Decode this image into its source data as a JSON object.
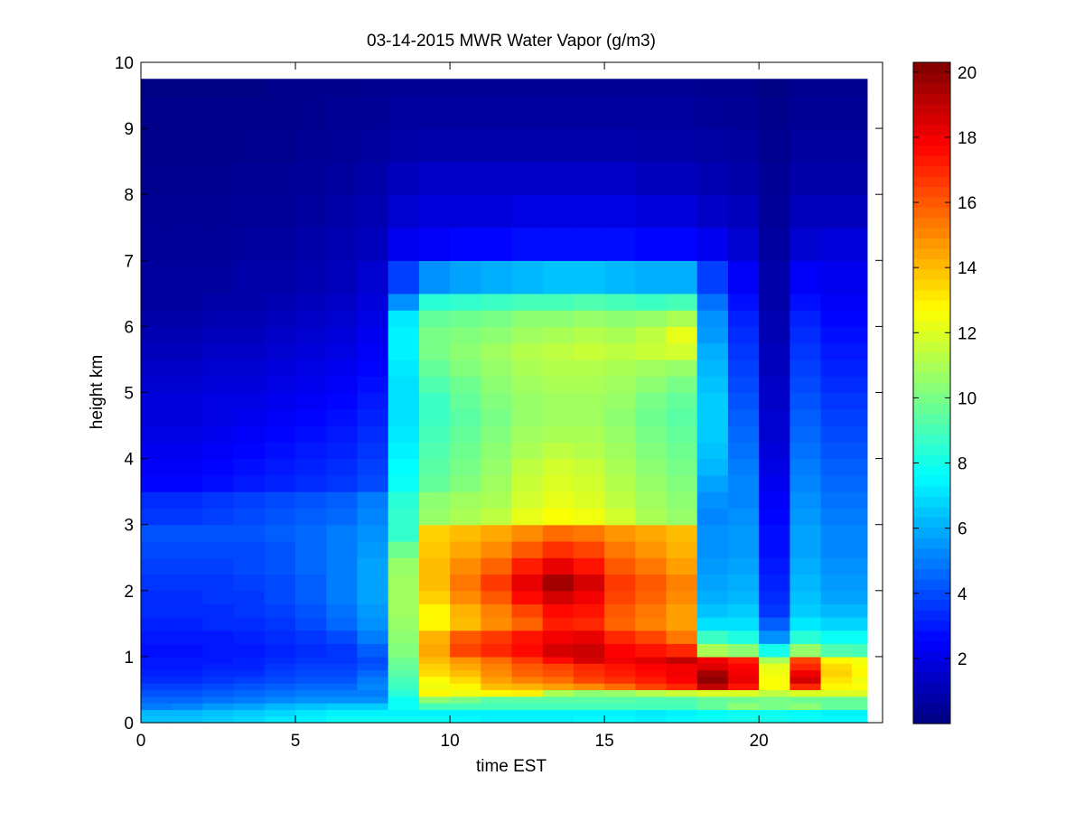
{
  "chart_data": {
    "type": "heatmap",
    "title": "03-14-2015 MWR Water Vapor (g/m3)",
    "xlabel": "time EST",
    "ylabel": "height km",
    "xlim": [
      0,
      24
    ],
    "ylim": [
      0,
      10
    ],
    "x_ticks": [
      0,
      5,
      10,
      15,
      20
    ],
    "y_ticks": [
      0,
      1,
      2,
      3,
      4,
      5,
      6,
      7,
      8,
      9,
      10
    ],
    "x": [
      0.0,
      1.0,
      2.0,
      3.0,
      4.0,
      5.0,
      6.0,
      7.0,
      8.0,
      9.0,
      10.0,
      11.0,
      12.0,
      13.0,
      14.0,
      15.0,
      16.0,
      17.0,
      18.0,
      19.0,
      20.0,
      21.0,
      22.0,
      23.0
    ],
    "y": [
      0.0,
      0.1,
      0.2,
      0.3,
      0.4,
      0.5,
      0.6,
      0.7,
      0.8,
      0.9,
      1.0,
      1.2,
      1.4,
      1.6,
      1.8,
      2.0,
      2.25,
      2.5,
      2.75,
      3.0,
      3.25,
      3.5,
      3.75,
      4.0,
      4.25,
      4.5,
      4.75,
      5.0,
      5.25,
      5.5,
      5.75,
      6.0,
      6.25,
      6.5,
      7.0,
      7.5,
      8.0,
      8.5,
      9.0,
      9.5
    ],
    "z": [
      [
        6.4,
        6.4,
        6.6,
        6.8,
        7.2,
        7.4,
        7.8,
        7.8,
        7.8,
        7.8,
        7.6,
        7.4,
        7.4,
        7.4,
        7.6,
        7.6,
        7.4,
        7.6,
        7.8,
        8.0,
        8.0,
        7.8,
        7.6,
        7.6
      ],
      [
        6.2,
        6.2,
        6.4,
        6.6,
        6.8,
        7.2,
        7.4,
        7.4,
        7.4,
        7.4,
        7.4,
        7.4,
        7.4,
        7.4,
        7.4,
        7.4,
        7.2,
        7.4,
        7.6,
        7.8,
        7.8,
        7.6,
        7.4,
        7.4
      ],
      [
        5.0,
        5.2,
        5.6,
        5.8,
        6.2,
        6.4,
        6.6,
        6.6,
        7.8,
        9.0,
        9.0,
        9.0,
        9.0,
        9.0,
        9.0,
        9.0,
        9.0,
        9.0,
        9.6,
        10.4,
        10.0,
        10.4,
        9.6,
        9.6
      ],
      [
        4.6,
        4.6,
        4.8,
        5.0,
        5.2,
        5.4,
        5.4,
        5.4,
        7.8,
        10.4,
        10.0,
        9.4,
        9.4,
        9.4,
        9.4,
        9.4,
        9.2,
        9.2,
        9.6,
        9.8,
        10.0,
        9.8,
        9.6,
        9.6
      ],
      [
        4.2,
        4.2,
        4.4,
        4.6,
        4.8,
        5.0,
        5.0,
        5.0,
        8.4,
        12.8,
        12.4,
        12.8,
        13.0,
        11.0,
        10.4,
        10.6,
        11.2,
        11.6,
        12.0,
        12.0,
        11.4,
        12.0,
        12.0,
        12.0
      ],
      [
        3.8,
        3.8,
        4.0,
        4.2,
        4.4,
        4.6,
        4.6,
        5.2,
        8.8,
        12.4,
        12.8,
        14.0,
        14.2,
        14.6,
        15.0,
        15.6,
        16.4,
        17.0,
        19.0,
        17.4,
        12.6,
        17.0,
        12.8,
        12.6
      ],
      [
        3.4,
        3.4,
        3.6,
        3.8,
        4.0,
        4.2,
        4.2,
        5.0,
        9.0,
        12.6,
        13.4,
        14.6,
        15.2,
        15.6,
        16.4,
        16.8,
        17.2,
        17.8,
        20.0,
        18.2,
        12.6,
        18.6,
        13.2,
        12.4
      ],
      [
        3.2,
        3.2,
        3.4,
        3.4,
        3.8,
        4.0,
        4.0,
        4.6,
        9.4,
        13.4,
        14.0,
        15.0,
        15.8,
        16.2,
        16.8,
        17.2,
        17.6,
        18.0,
        19.6,
        18.0,
        12.4,
        18.0,
        13.6,
        12.8
      ],
      [
        3.0,
        3.0,
        3.2,
        3.2,
        3.6,
        3.8,
        3.8,
        4.2,
        9.6,
        13.6,
        14.4,
        15.2,
        16.0,
        16.4,
        17.0,
        17.4,
        17.8,
        18.0,
        18.4,
        17.8,
        12.2,
        17.0,
        13.4,
        12.6
      ],
      [
        3.0,
        3.0,
        3.0,
        3.2,
        3.4,
        3.6,
        3.6,
        4.0,
        9.8,
        14.0,
        14.8,
        15.6,
        16.6,
        17.6,
        18.6,
        18.0,
        18.4,
        19.0,
        18.0,
        17.2,
        11.0,
        16.4,
        12.8,
        12.4
      ],
      [
        2.8,
        2.8,
        3.0,
        3.0,
        3.2,
        3.4,
        3.6,
        4.4,
        10.2,
        14.4,
        16.4,
        17.0,
        17.6,
        18.6,
        18.8,
        17.8,
        17.4,
        17.0,
        11.0,
        10.4,
        8.0,
        10.6,
        9.2,
        9.0
      ],
      [
        3.0,
        3.0,
        3.0,
        3.2,
        3.4,
        3.6,
        4.0,
        5.0,
        10.4,
        14.2,
        16.0,
        16.6,
        17.4,
        18.0,
        18.2,
        17.0,
        16.4,
        15.4,
        8.8,
        8.2,
        5.4,
        8.4,
        7.8,
        7.8
      ],
      [
        3.2,
        3.2,
        3.4,
        3.4,
        3.6,
        4.0,
        4.6,
        5.4,
        10.6,
        12.8,
        14.0,
        15.0,
        15.8,
        17.2,
        17.0,
        15.8,
        15.2,
        14.6,
        7.0,
        7.0,
        4.4,
        7.2,
        6.8,
        6.8
      ],
      [
        3.4,
        3.4,
        3.4,
        3.6,
        3.8,
        4.2,
        4.8,
        5.6,
        10.8,
        12.8,
        14.2,
        15.2,
        16.4,
        17.6,
        17.4,
        16.0,
        15.4,
        14.6,
        6.4,
        6.6,
        3.6,
        6.6,
        6.2,
        6.2
      ],
      [
        3.4,
        3.4,
        3.6,
        3.6,
        4.0,
        4.4,
        5.0,
        5.8,
        10.8,
        13.6,
        15.0,
        16.0,
        17.6,
        18.6,
        18.0,
        16.4,
        15.8,
        15.0,
        6.0,
        6.2,
        3.4,
        6.4,
        5.8,
        5.8
      ],
      [
        3.6,
        3.6,
        3.6,
        3.8,
        4.0,
        4.4,
        5.0,
        5.8,
        10.8,
        14.0,
        15.4,
        16.6,
        18.2,
        19.6,
        18.6,
        16.6,
        16.0,
        15.2,
        5.8,
        6.0,
        3.2,
        6.2,
        5.6,
        5.6
      ],
      [
        3.8,
        3.8,
        3.8,
        4.0,
        4.2,
        4.6,
        5.0,
        5.8,
        10.6,
        14.0,
        15.0,
        15.8,
        17.2,
        18.2,
        17.4,
        16.0,
        15.4,
        14.6,
        5.6,
        5.8,
        3.0,
        6.0,
        5.4,
        5.4
      ],
      [
        4.0,
        4.0,
        4.0,
        4.0,
        4.2,
        4.6,
        5.0,
        5.6,
        9.8,
        13.8,
        14.4,
        15.0,
        16.0,
        16.8,
        16.4,
        15.4,
        14.8,
        14.2,
        5.4,
        5.6,
        2.8,
        5.8,
        5.2,
        5.2
      ],
      [
        4.2,
        4.2,
        4.2,
        4.2,
        4.4,
        4.6,
        5.0,
        5.4,
        8.6,
        13.6,
        14.0,
        14.4,
        15.0,
        15.6,
        15.4,
        14.8,
        14.4,
        14.0,
        5.4,
        5.6,
        2.8,
        5.8,
        5.2,
        5.2
      ],
      [
        3.6,
        3.6,
        3.8,
        4.0,
        4.2,
        4.4,
        4.6,
        5.2,
        8.6,
        10.6,
        11.0,
        11.4,
        12.2,
        12.6,
        12.4,
        11.8,
        11.0,
        10.6,
        5.2,
        5.4,
        2.6,
        5.6,
        5.0,
        5.0
      ],
      [
        3.4,
        3.4,
        3.6,
        3.8,
        4.0,
        4.2,
        4.4,
        5.0,
        8.4,
        10.4,
        10.8,
        11.0,
        11.8,
        12.2,
        12.0,
        11.4,
        10.8,
        10.4,
        5.4,
        5.2,
        2.4,
        5.4,
        4.8,
        4.8
      ],
      [
        2.6,
        2.6,
        2.8,
        3.0,
        3.2,
        3.4,
        3.6,
        4.0,
        7.8,
        9.6,
        10.2,
        10.8,
        11.6,
        12.0,
        11.8,
        11.2,
        10.6,
        10.2,
        5.8,
        5.2,
        2.2,
        5.2,
        4.6,
        4.6
      ],
      [
        2.4,
        2.4,
        2.6,
        2.8,
        3.0,
        3.2,
        3.4,
        3.8,
        7.6,
        9.4,
        10.0,
        10.6,
        11.4,
        11.8,
        11.6,
        11.0,
        10.4,
        10.0,
        6.2,
        5.0,
        2.0,
        5.0,
        4.4,
        4.4
      ],
      [
        2.2,
        2.2,
        2.4,
        2.6,
        2.8,
        3.0,
        3.2,
        3.6,
        7.4,
        9.2,
        9.8,
        10.4,
        11.0,
        11.4,
        11.2,
        10.8,
        10.2,
        9.8,
        6.4,
        4.8,
        1.8,
        4.8,
        4.2,
        4.2
      ],
      [
        2.0,
        2.0,
        2.2,
        2.4,
        2.6,
        2.8,
        3.0,
        3.4,
        7.2,
        9.0,
        9.6,
        10.2,
        10.8,
        11.0,
        11.0,
        10.6,
        10.0,
        9.6,
        6.6,
        4.6,
        1.6,
        4.6,
        4.0,
        4.0
      ],
      [
        1.8,
        1.8,
        2.0,
        2.2,
        2.4,
        2.6,
        2.8,
        3.2,
        7.0,
        8.8,
        9.4,
        10.0,
        10.6,
        10.8,
        10.8,
        10.4,
        9.8,
        9.4,
        6.6,
        4.4,
        1.6,
        4.4,
        3.8,
        3.8
      ],
      [
        1.8,
        1.8,
        2.0,
        2.0,
        2.2,
        2.4,
        2.6,
        3.0,
        7.0,
        8.8,
        9.6,
        10.2,
        10.6,
        10.8,
        10.8,
        10.6,
        10.0,
        9.6,
        6.6,
        4.2,
        1.4,
        4.2,
        3.6,
        3.6
      ],
      [
        1.6,
        1.6,
        1.8,
        1.8,
        2.0,
        2.2,
        2.4,
        2.8,
        7.0,
        9.2,
        9.8,
        10.4,
        10.8,
        11.0,
        11.0,
        10.8,
        10.4,
        10.0,
        6.4,
        4.0,
        1.4,
        4.0,
        3.4,
        3.4
      ],
      [
        1.4,
        1.4,
        1.6,
        1.6,
        1.8,
        2.0,
        2.2,
        2.6,
        7.2,
        9.6,
        10.2,
        10.6,
        11.0,
        11.2,
        11.2,
        11.0,
        10.8,
        10.6,
        6.2,
        3.8,
        1.2,
        3.8,
        3.2,
        3.2
      ],
      [
        1.2,
        1.2,
        1.4,
        1.4,
        1.6,
        1.8,
        2.0,
        2.4,
        7.4,
        10.0,
        10.4,
        10.8,
        11.2,
        11.4,
        11.6,
        11.4,
        11.6,
        11.8,
        6.0,
        3.6,
        1.2,
        3.6,
        3.0,
        3.0
      ],
      [
        1.0,
        1.0,
        1.2,
        1.2,
        1.4,
        1.6,
        1.8,
        2.2,
        7.4,
        10.0,
        10.2,
        10.4,
        10.8,
        11.0,
        11.2,
        11.0,
        11.4,
        12.2,
        5.6,
        3.4,
        1.0,
        3.4,
        2.8,
        2.8
      ],
      [
        0.8,
        0.8,
        1.0,
        1.0,
        1.2,
        1.4,
        1.6,
        2.0,
        7.2,
        9.6,
        9.8,
        10.0,
        10.4,
        10.4,
        10.6,
        10.4,
        10.6,
        11.0,
        5.4,
        3.2,
        1.0,
        3.2,
        2.6,
        2.6
      ],
      [
        0.6,
        0.6,
        0.8,
        0.8,
        1.0,
        1.2,
        1.4,
        1.8,
        5.4,
        8.4,
        8.6,
        8.8,
        9.0,
        9.0,
        9.2,
        9.0,
        8.8,
        9.0,
        4.8,
        2.8,
        0.8,
        2.8,
        2.4,
        2.4
      ],
      [
        0.6,
        0.6,
        0.6,
        0.8,
        0.8,
        1.0,
        1.2,
        1.6,
        3.8,
        5.4,
        5.8,
        6.0,
        6.2,
        6.4,
        6.4,
        6.2,
        6.0,
        6.0,
        3.8,
        2.4,
        0.8,
        2.4,
        2.2,
        2.2
      ],
      [
        0.5,
        0.5,
        0.5,
        0.6,
        0.6,
        0.8,
        1.0,
        1.2,
        2.2,
        2.4,
        2.6,
        2.6,
        2.8,
        2.8,
        2.8,
        2.8,
        2.6,
        2.6,
        2.2,
        1.6,
        0.6,
        1.6,
        1.8,
        1.8
      ],
      [
        0.4,
        0.4,
        0.4,
        0.5,
        0.5,
        0.6,
        0.8,
        1.0,
        1.6,
        1.8,
        1.8,
        1.8,
        2.0,
        2.0,
        2.0,
        2.0,
        1.8,
        1.8,
        1.4,
        1.2,
        0.5,
        1.2,
        1.2,
        1.2
      ],
      [
        0.3,
        0.3,
        0.3,
        0.4,
        0.4,
        0.5,
        0.6,
        0.8,
        1.2,
        1.4,
        1.4,
        1.4,
        1.4,
        1.4,
        1.4,
        1.4,
        1.2,
        1.2,
        1.0,
        0.8,
        0.4,
        0.8,
        0.8,
        0.8
      ],
      [
        0.2,
        0.2,
        0.2,
        0.3,
        0.3,
        0.4,
        0.5,
        0.6,
        0.8,
        0.9,
        0.9,
        0.9,
        0.9,
        0.9,
        0.9,
        0.9,
        0.8,
        0.8,
        0.7,
        0.6,
        0.3,
        0.6,
        0.6,
        0.6
      ],
      [
        0.2,
        0.2,
        0.2,
        0.2,
        0.2,
        0.3,
        0.4,
        0.4,
        0.6,
        0.6,
        0.6,
        0.6,
        0.6,
        0.6,
        0.6,
        0.6,
        0.6,
        0.6,
        0.5,
        0.4,
        0.2,
        0.4,
        0.4,
        0.4
      ],
      [
        0.1,
        0.1,
        0.1,
        0.1,
        0.2,
        0.2,
        0.2,
        0.3,
        0.4,
        0.4,
        0.4,
        0.4,
        0.4,
        0.4,
        0.4,
        0.4,
        0.4,
        0.4,
        0.3,
        0.3,
        0.1,
        0.3,
        0.3,
        0.3
      ]
    ],
    "data_xmax": 23.5,
    "data_ymax": 9.75,
    "colorbar": {
      "colormap": "jet",
      "range": [
        0,
        20.3
      ],
      "ticks": [
        2,
        4,
        6,
        8,
        10,
        12,
        14,
        16,
        18,
        20
      ]
    },
    "grid": false
  }
}
